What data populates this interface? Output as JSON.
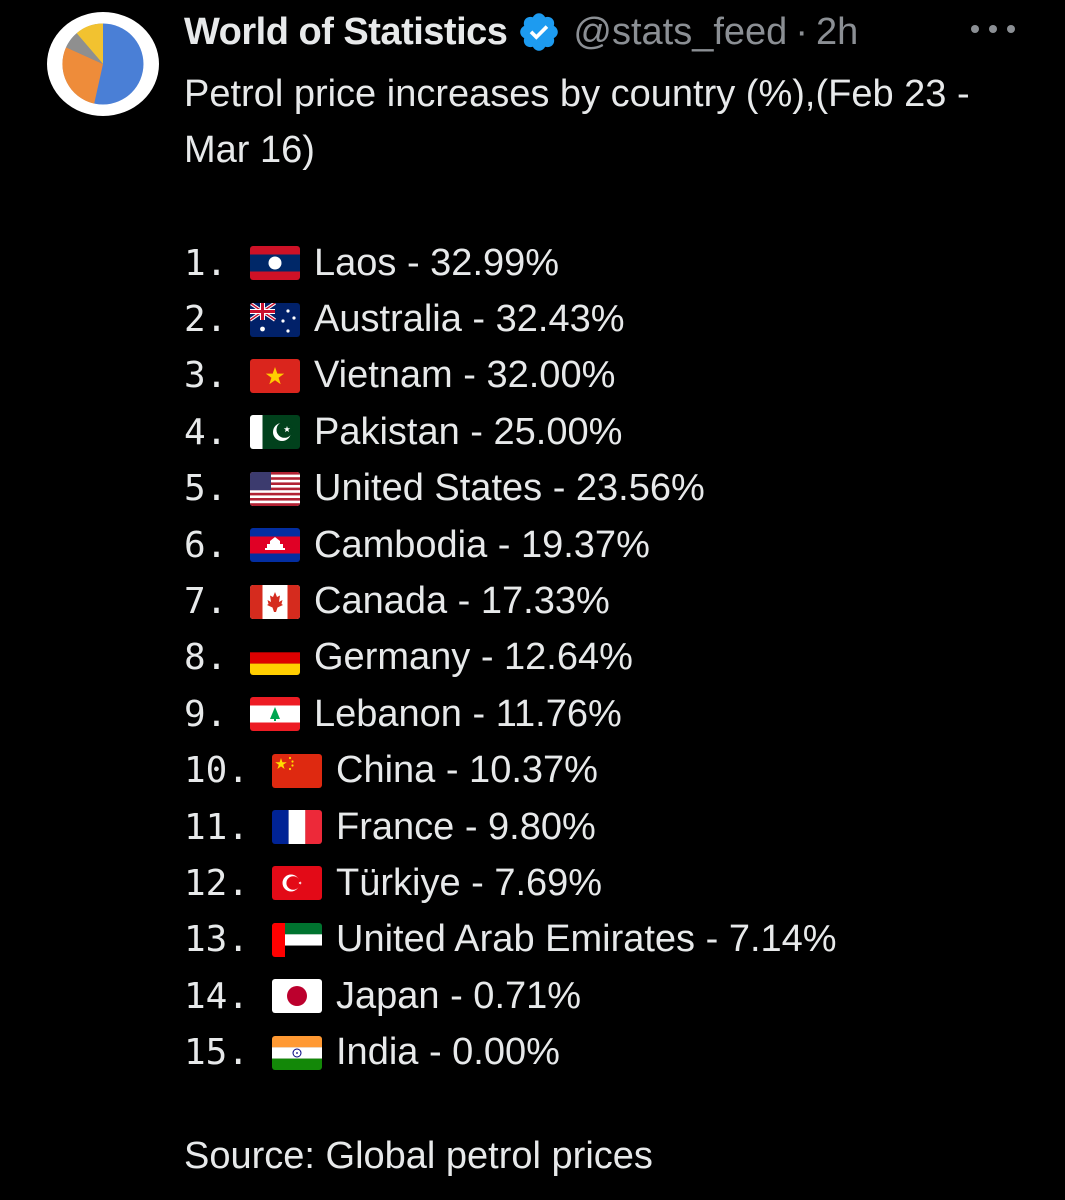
{
  "post": {
    "author_name": "World of Statistics",
    "handle": "@stats_feed",
    "separator": "·",
    "time": "2h",
    "title": "Petrol price increases by country (%),(Feb 23 - Mar 16)",
    "source": "Source: Global petrol prices"
  },
  "icons": {
    "avatar": "pie-chart-avatar",
    "verified": "verified-badge-icon",
    "more": "more-options-icon"
  },
  "colors": {
    "background": "#000000",
    "text": "#e7e9ea",
    "muted": "#8b8f94",
    "verified": "#1d9bf0"
  },
  "rankings": [
    {
      "rank": "1.",
      "country": "Laos",
      "value": 32.99,
      "label": "Laos - 32.99%",
      "flag": "laos-flag"
    },
    {
      "rank": "2.",
      "country": "Australia",
      "value": 32.43,
      "label": "Australia - 32.43%",
      "flag": "australia-flag"
    },
    {
      "rank": "3.",
      "country": "Vietnam",
      "value": 32.0,
      "label": "Vietnam - 32.00%",
      "flag": "vietnam-flag"
    },
    {
      "rank": "4.",
      "country": "Pakistan",
      "value": 25.0,
      "label": "Pakistan - 25.00%",
      "flag": "pakistan-flag"
    },
    {
      "rank": "5.",
      "country": "United States",
      "value": 23.56,
      "label": "United States - 23.56%",
      "flag": "usa-flag"
    },
    {
      "rank": "6.",
      "country": "Cambodia",
      "value": 19.37,
      "label": "Cambodia - 19.37%",
      "flag": "cambodia-flag"
    },
    {
      "rank": "7.",
      "country": "Canada",
      "value": 17.33,
      "label": "Canada - 17.33%",
      "flag": "canada-flag"
    },
    {
      "rank": "8.",
      "country": "Germany",
      "value": 12.64,
      "label": "Germany - 12.64%",
      "flag": "germany-flag"
    },
    {
      "rank": "9.",
      "country": "Lebanon",
      "value": 11.76,
      "label": "Lebanon - 11.76%",
      "flag": "lebanon-flag"
    },
    {
      "rank": "10.",
      "country": "China",
      "value": 10.37,
      "label": "China - 10.37%",
      "flag": "china-flag"
    },
    {
      "rank": "11.",
      "country": "France",
      "value": 9.8,
      "label": "France - 9.80%",
      "flag": "france-flag"
    },
    {
      "rank": "12.",
      "country": "Türkiye",
      "value": 7.69,
      "label": "Türkiye - 7.69%",
      "flag": "turkiye-flag"
    },
    {
      "rank": "13.",
      "country": "United Arab Emirates",
      "value": 7.14,
      "label": "United Arab Emirates - 7.14%",
      "flag": "uae-flag"
    },
    {
      "rank": "14.",
      "country": "Japan",
      "value": 0.71,
      "label": "Japan - 0.71%",
      "flag": "japan-flag"
    },
    {
      "rank": "15.",
      "country": "India",
      "value": 0.0,
      "label": "India - 0.00%",
      "flag": "india-flag"
    }
  ]
}
